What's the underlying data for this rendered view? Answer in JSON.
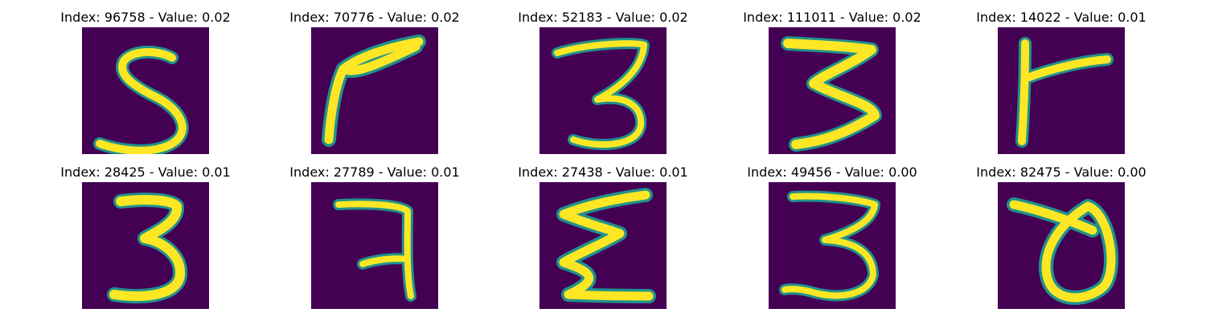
{
  "colors": {
    "background": "#440154",
    "edge": "#21918c",
    "stroke": "#fde725",
    "core": "#f0f921"
  },
  "panels": [
    {
      "title": "Index: 96758 - Value: 0.02",
      "glyph": "digit-5-icon"
    },
    {
      "title": "Index: 70776 - Value: 0.02",
      "glyph": "digit-7-icon"
    },
    {
      "title": "Index: 52183 - Value: 0.02",
      "glyph": "digit-3-icon"
    },
    {
      "title": "Index: 111011 - Value: 0.02",
      "glyph": "digit-3-icon"
    },
    {
      "title": "Index: 14022 - Value: 0.01",
      "glyph": "digit-7-icon"
    },
    {
      "title": "Index: 28425 - Value: 0.01",
      "glyph": "digit-3-icon"
    },
    {
      "title": "Index: 27789 - Value: 0.01",
      "glyph": "digit-7-icon"
    },
    {
      "title": "Index: 27438 - Value: 0.01",
      "glyph": "digit-3-icon"
    },
    {
      "title": "Index: 49456 - Value: 0.00",
      "glyph": "digit-3-icon"
    },
    {
      "title": "Index: 82475 - Value: 0.00",
      "glyph": "digit-0-icon"
    }
  ]
}
